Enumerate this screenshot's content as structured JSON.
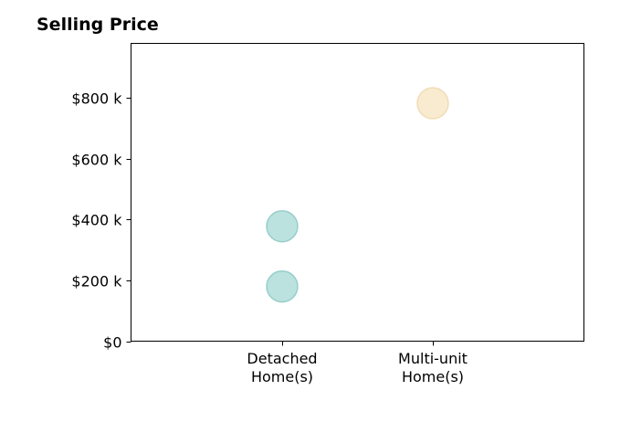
{
  "chart_data": {
    "type": "scatter",
    "title": "Selling Price",
    "xlabel": "",
    "ylabel": "",
    "categories": [
      [
        "Detached",
        "Home(s)"
      ],
      [
        "Multi-unit",
        "Home(s)"
      ]
    ],
    "y_ticks": [
      "$0",
      "$200 k",
      "$400 k",
      "$600 k",
      "$800 k"
    ],
    "y_tick_values": [
      0,
      200000,
      400000,
      600000,
      800000
    ],
    "ylim": [
      0,
      980000
    ],
    "grid": false,
    "legend": "none",
    "series": [
      {
        "category_index": 0,
        "color": "#8ecfc9",
        "points": [
          180000,
          378000
        ]
      },
      {
        "category_index": 1,
        "color": "#f3ddb0",
        "points": [
          783000
        ]
      }
    ]
  }
}
